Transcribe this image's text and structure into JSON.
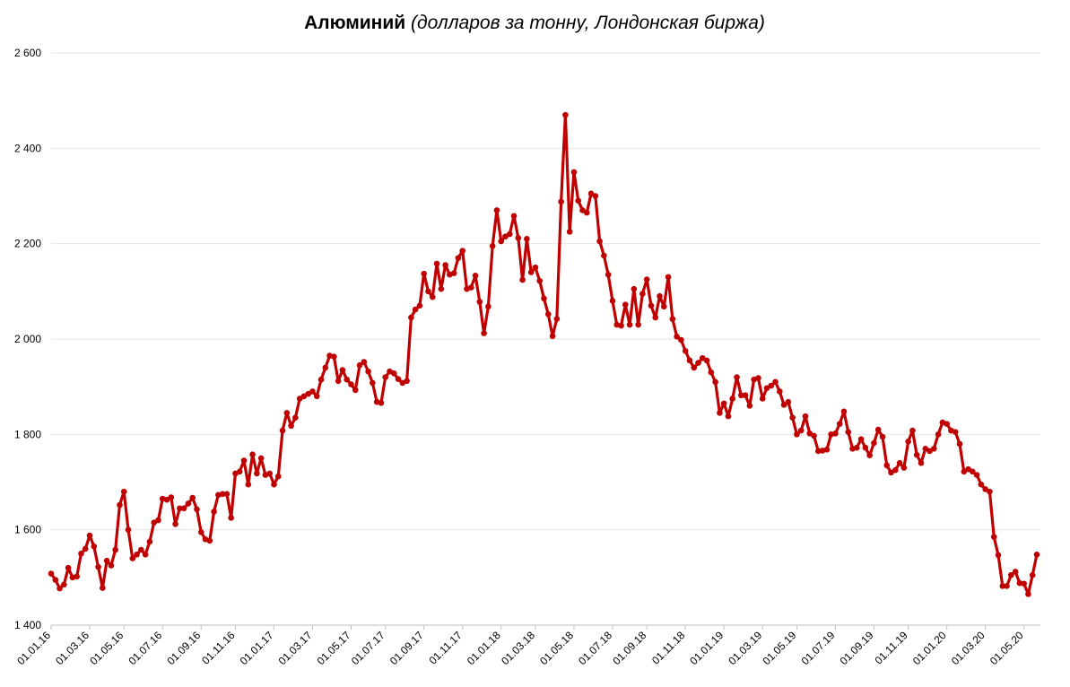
{
  "chart_data": {
    "type": "line",
    "title": "Алюминий",
    "subtitle": "(долларов за тонну, Лондонская биржа)",
    "categories": [
      "01.01.16",
      null,
      null,
      null,
      null,
      null,
      null,
      null,
      null,
      "01.03.16",
      null,
      null,
      null,
      null,
      null,
      null,
      null,
      "01.05.16",
      null,
      null,
      null,
      null,
      null,
      null,
      null,
      null,
      "01.07.16",
      null,
      null,
      null,
      null,
      null,
      null,
      null,
      null,
      "01.09.16",
      null,
      null,
      null,
      null,
      null,
      null,
      null,
      "01.11.16",
      null,
      null,
      null,
      null,
      null,
      null,
      null,
      null,
      "01.01.17",
      null,
      null,
      null,
      null,
      null,
      null,
      null,
      null,
      "01.03.17",
      null,
      null,
      null,
      null,
      null,
      null,
      null,
      null,
      "01.05.17",
      null,
      null,
      null,
      null,
      null,
      null,
      null,
      "01.07.17",
      null,
      null,
      null,
      null,
      null,
      null,
      null,
      null,
      "01.09.17",
      null,
      null,
      null,
      null,
      null,
      null,
      null,
      null,
      "01.11.17",
      null,
      null,
      null,
      null,
      null,
      null,
      null,
      null,
      "01.01.18",
      null,
      null,
      null,
      null,
      null,
      null,
      null,
      "01.03.18",
      null,
      null,
      null,
      null,
      null,
      null,
      null,
      null,
      "01.05.18",
      null,
      null,
      null,
      null,
      null,
      null,
      null,
      null,
      "01.07.18",
      null,
      null,
      null,
      null,
      null,
      null,
      null,
      "01.09.18",
      null,
      null,
      null,
      null,
      null,
      null,
      null,
      null,
      "01.11.18",
      null,
      null,
      null,
      null,
      null,
      null,
      null,
      null,
      "01.01.19",
      null,
      null,
      null,
      null,
      null,
      null,
      null,
      null,
      "01.03.19",
      null,
      null,
      null,
      null,
      null,
      null,
      null,
      "01.05.19",
      null,
      null,
      null,
      null,
      null,
      null,
      null,
      null,
      "01.07.19",
      null,
      null,
      null,
      null,
      null,
      null,
      null,
      null,
      "01.09.19",
      null,
      null,
      null,
      null,
      null,
      null,
      null,
      "01.11.19",
      null,
      null,
      null,
      null,
      null,
      null,
      null,
      null,
      "01.01.20",
      null,
      null,
      null,
      null,
      null,
      null,
      null,
      null,
      "01.03.20",
      null,
      null,
      null,
      null,
      null,
      null,
      null,
      null,
      "01.05.20",
      null,
      null,
      null
    ],
    "values": [
      1508,
      1495,
      1477,
      1485,
      1520,
      1500,
      1502,
      1550,
      1560,
      1588,
      1565,
      1522,
      1478,
      1535,
      1525,
      1558,
      1652,
      1680,
      1600,
      1540,
      1548,
      1558,
      1548,
      1575,
      1615,
      1620,
      1665,
      1663,
      1668,
      1612,
      1645,
      1645,
      1655,
      1667,
      1643,
      1595,
      1580,
      1577,
      1638,
      1673,
      1675,
      1675,
      1625,
      1718,
      1722,
      1745,
      1695,
      1758,
      1718,
      1750,
      1715,
      1718,
      1695,
      1712,
      1808,
      1845,
      1818,
      1835,
      1875,
      1880,
      1885,
      1890,
      1880,
      1915,
      1940,
      1965,
      1963,
      1912,
      1935,
      1915,
      1905,
      1893,
      1945,
      1952,
      1932,
      1908,
      1868,
      1866,
      1920,
      1932,
      1928,
      1916,
      1908,
      1912,
      2045,
      2062,
      2070,
      2137,
      2100,
      2088,
      2158,
      2105,
      2155,
      2135,
      2138,
      2170,
      2185,
      2105,
      2108,
      2133,
      2078,
      2012,
      2068,
      2195,
      2270,
      2205,
      2215,
      2220,
      2258,
      2212,
      2124,
      2210,
      2140,
      2150,
      2122,
      2085,
      2052,
      2006,
      2042,
      2288,
      2470,
      2225,
      2350,
      2290,
      2270,
      2265,
      2305,
      2300,
      2205,
      2175,
      2135,
      2080,
      2030,
      2028,
      2072,
      2030,
      2105,
      2030,
      2095,
      2125,
      2070,
      2045,
      2090,
      2068,
      2130,
      2042,
      2005,
      1998,
      1975,
      1955,
      1940,
      1950,
      1960,
      1955,
      1930,
      1910,
      1845,
      1865,
      1838,
      1875,
      1920,
      1882,
      1882,
      1860,
      1915,
      1918,
      1875,
      1897,
      1902,
      1910,
      1890,
      1862,
      1868,
      1835,
      1800,
      1808,
      1838,
      1802,
      1797,
      1765,
      1766,
      1768,
      1800,
      1802,
      1822,
      1848,
      1805,
      1770,
      1772,
      1790,
      1772,
      1756,
      1782,
      1810,
      1795,
      1735,
      1720,
      1725,
      1740,
      1730,
      1785,
      1808,
      1757,
      1740,
      1770,
      1765,
      1770,
      1800,
      1825,
      1822,
      1808,
      1805,
      1780,
      1722,
      1727,
      1722,
      1715,
      1695,
      1685,
      1680,
      1585,
      1547,
      1482,
      1482,
      1505,
      1512,
      1488,
      1487,
      1465,
      1505,
      1548
    ],
    "color": "#c00000",
    "ylim": [
      1400,
      2600
    ],
    "yticks": [
      {
        "value": 1400,
        "label": "1 400"
      },
      {
        "value": 1600,
        "label": "1 600"
      },
      {
        "value": 1800,
        "label": "1 800"
      },
      {
        "value": 2000,
        "label": "2 000"
      },
      {
        "value": 2200,
        "label": "2 200"
      },
      {
        "value": 2400,
        "label": "2 400"
      },
      {
        "value": 2600,
        "label": "2 600"
      }
    ],
    "grid": true
  }
}
